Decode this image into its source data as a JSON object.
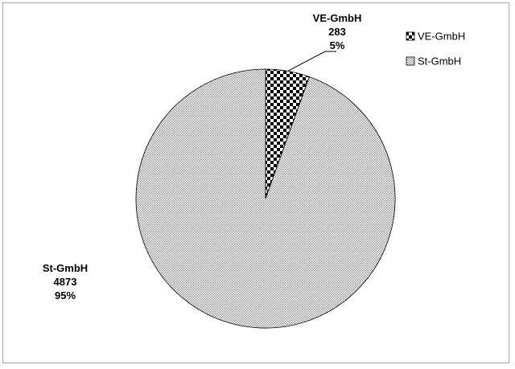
{
  "chart_data": {
    "type": "pie",
    "slices": [
      {
        "label": "VE-GmbH",
        "value": 283,
        "percent": "5%",
        "pattern": "checker"
      },
      {
        "label": "St-GmbH",
        "value": 4873,
        "percent": "95%",
        "pattern": "dots"
      }
    ],
    "legend": {
      "position": "top-right",
      "items": [
        "VE-GmbH",
        "St-GmbH"
      ]
    },
    "colors": {
      "outline": "#000000",
      "dot_fill": "#7f7f7f",
      "background": "#ffffff",
      "frame": "#a6a6a6"
    }
  }
}
